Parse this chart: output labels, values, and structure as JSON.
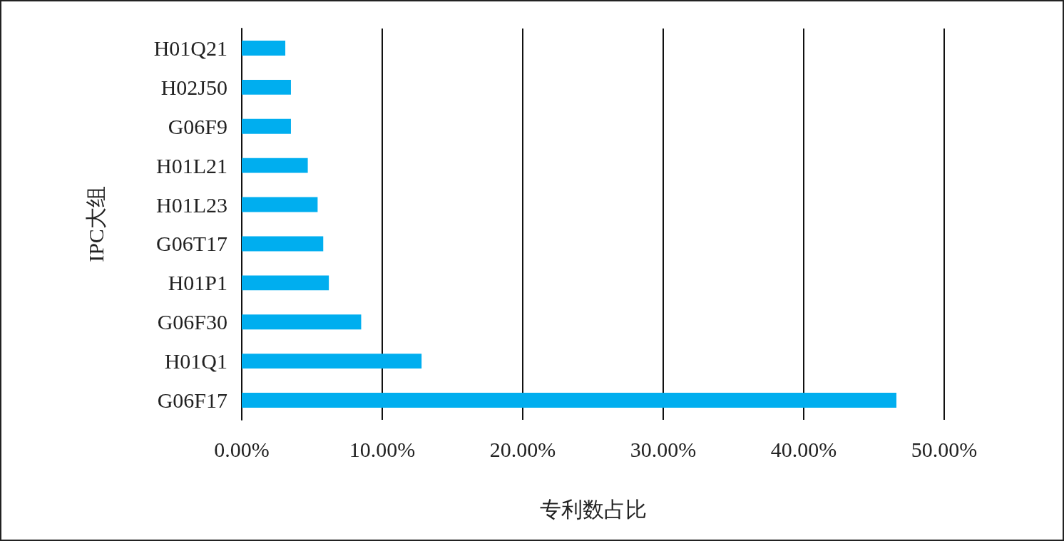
{
  "chart_data": {
    "type": "bar",
    "orientation": "horizontal",
    "xlabel": "专利数占比",
    "ylabel": "IPC大组",
    "categories": [
      "H01Q21",
      "H02J50",
      "G06F9",
      "H01L21",
      "H01L23",
      "G06T17",
      "H01P1",
      "G06F30",
      "H01Q1",
      "G06F17"
    ],
    "values": [
      3.1,
      3.5,
      3.5,
      4.7,
      5.4,
      5.8,
      6.2,
      8.5,
      12.8,
      46.6
    ],
    "color": "#00aeef",
    "xlim": [
      0,
      50
    ],
    "xticks": [
      {
        "value": 0,
        "label": "0.00%"
      },
      {
        "value": 10,
        "label": "10.00%"
      },
      {
        "value": 20,
        "label": "20.00%"
      },
      {
        "value": 30,
        "label": "30.00%"
      },
      {
        "value": 40,
        "label": "40.00%"
      },
      {
        "value": 50,
        "label": "50.00%"
      }
    ],
    "grid": "x"
  }
}
